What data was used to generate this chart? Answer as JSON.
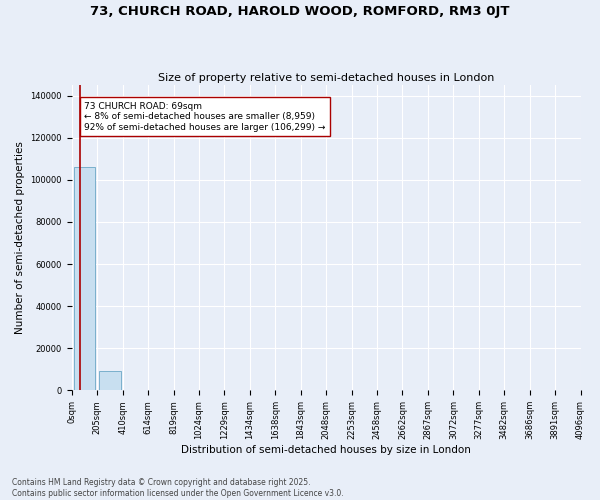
{
  "title": "73, CHURCH ROAD, HAROLD WOOD, ROMFORD, RM3 0JT",
  "subtitle": "Size of property relative to semi-detached houses in London",
  "xlabel": "Distribution of semi-detached houses by size in London",
  "ylabel": "Number of semi-detached properties",
  "property_size": 69,
  "smaller_count": 8959,
  "smaller_pct": 8,
  "larger_count": 106299,
  "larger_pct": 92,
  "annotation_text": "73 CHURCH ROAD: 69sqm\n← 8% of semi-detached houses are smaller (8,959)\n92% of semi-detached houses are larger (106,299) →",
  "bar_color": "#c8dff0",
  "bar_edge_color": "#7ab0cc",
  "vline_color": "#aa0000",
  "annotation_box_color": "#ffffff",
  "annotation_border_color": "#aa0000",
  "background_color": "#e8eef8",
  "grid_color": "#ffffff",
  "ylim": [
    0,
    145000
  ],
  "yticks": [
    0,
    20000,
    40000,
    60000,
    80000,
    100000,
    120000,
    140000
  ],
  "n_bins": 20,
  "bin_edges": [
    0,
    205,
    410,
    614,
    819,
    1024,
    1229,
    1434,
    1638,
    1843,
    2048,
    2253,
    2458,
    2662,
    2867,
    3072,
    3277,
    3482,
    3686,
    3891,
    4096
  ],
  "bin_labels": [
    "0sqm",
    "205sqm",
    "410sqm",
    "614sqm",
    "819sqm",
    "1024sqm",
    "1229sqm",
    "1434sqm",
    "1638sqm",
    "1843sqm",
    "2048sqm",
    "2253sqm",
    "2458sqm",
    "2662sqm",
    "2867sqm",
    "3072sqm",
    "3277sqm",
    "3482sqm",
    "3686sqm",
    "3891sqm",
    "4096sqm"
  ],
  "bar_heights": [
    106299,
    8959,
    0,
    0,
    0,
    0,
    0,
    0,
    0,
    0,
    0,
    0,
    0,
    0,
    0,
    0,
    0,
    0,
    0,
    0
  ],
  "footnote": "Contains HM Land Registry data © Crown copyright and database right 2025.\nContains public sector information licensed under the Open Government Licence v3.0.",
  "title_fontsize": 9.5,
  "subtitle_fontsize": 8,
  "tick_fontsize": 6,
  "label_fontsize": 7.5,
  "annotation_fontsize": 6.5,
  "footnote_fontsize": 5.5
}
